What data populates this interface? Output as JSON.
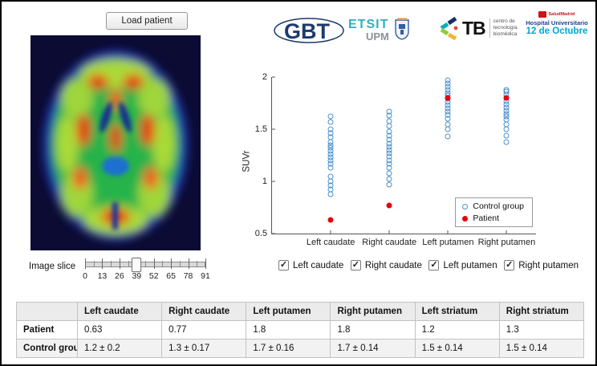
{
  "toolbar": {
    "load_button": "Load patient"
  },
  "logos": {
    "gbt": "GBT",
    "etsit": "ETSIT",
    "upm": "UPM",
    "ctb": "TB",
    "ctb_sub": [
      "centro de",
      "tecnología",
      "biomédica"
    ],
    "hospital_brand": "SaludMadrid",
    "hospital_line1": "Hospital Universitario",
    "hospital_line2": "12 de Octubre"
  },
  "slider": {
    "label": "Image slice",
    "tick_labels": [
      "0",
      "13",
      "26",
      "39",
      "52",
      "65",
      "78",
      "91"
    ],
    "value": 39,
    "max": 91
  },
  "checkboxes": [
    {
      "label": "Left caudate",
      "checked": true
    },
    {
      "label": "Right caudate",
      "checked": true
    },
    {
      "label": "Left putamen",
      "checked": true
    },
    {
      "label": "Right putamen",
      "checked": true
    }
  ],
  "chart_data": {
    "type": "scatter",
    "title": "",
    "ylabel": "SUVr",
    "ylim": [
      0.5,
      2
    ],
    "yticks": [
      0.5,
      1,
      1.5,
      2
    ],
    "categories": [
      "Left caudate",
      "Right caudate",
      "Left putamen",
      "Right putamen"
    ],
    "legend_position": "lower right",
    "series": [
      {
        "name": "Control group",
        "marker": "open-circle",
        "color": "#4a90cd",
        "points": {
          "Left caudate": [
            0.88,
            0.92,
            0.96,
            1.0,
            1.05,
            1.13,
            1.17,
            1.2,
            1.23,
            1.26,
            1.29,
            1.32,
            1.35,
            1.38,
            1.42,
            1.46,
            1.5,
            1.57,
            1.62
          ],
          "Right caudate": [
            0.97,
            1.02,
            1.08,
            1.13,
            1.17,
            1.2,
            1.24,
            1.27,
            1.3,
            1.33,
            1.36,
            1.4,
            1.44,
            1.48,
            1.53,
            1.58,
            1.63,
            1.67
          ],
          "Left putamen": [
            1.43,
            1.5,
            1.55,
            1.6,
            1.64,
            1.67,
            1.7,
            1.73,
            1.76,
            1.79,
            1.82,
            1.85,
            1.88,
            1.91,
            1.94,
            1.97
          ],
          "Right putamen": [
            1.38,
            1.44,
            1.5,
            1.55,
            1.59,
            1.62,
            1.65,
            1.68,
            1.71,
            1.74,
            1.77,
            1.8,
            1.83,
            1.86,
            1.88
          ]
        }
      },
      {
        "name": "Patient",
        "marker": "filled-circle",
        "color": "#e8000b",
        "points": {
          "Left caudate": [
            0.63
          ],
          "Right caudate": [
            0.77
          ],
          "Left putamen": [
            1.8
          ],
          "Right putamen": [
            1.8
          ]
        }
      }
    ]
  },
  "table": {
    "columns": [
      "",
      "Left caudate",
      "Right caudate",
      "Left putamen",
      "Right putamen",
      "Left striatum",
      "Right striatum"
    ],
    "rows": [
      {
        "label": "Patient",
        "values": [
          "0.63",
          "0.77",
          "1.8",
          "1.8",
          "1.2",
          "1.3"
        ]
      },
      {
        "label": "Control group",
        "values": [
          "1.2 ± 0.2",
          "1.3 ± 0.17",
          "1.7 ± 0.16",
          "1.7 ± 0.14",
          "1.5 ± 0.14",
          "1.5 ± 0.14"
        ]
      }
    ]
  }
}
